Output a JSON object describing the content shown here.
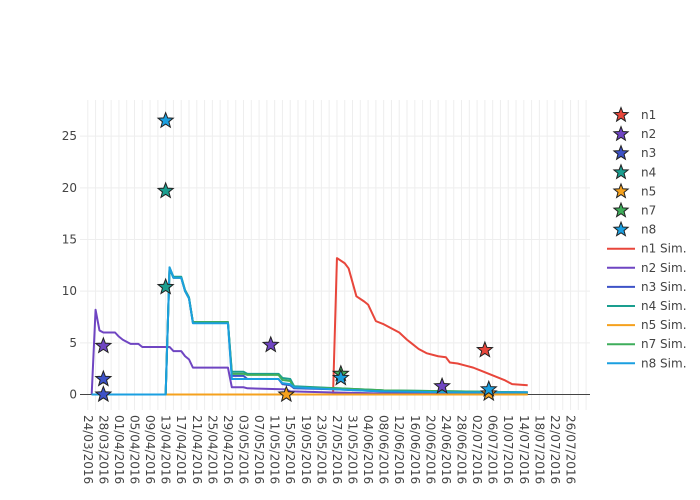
{
  "chart_data": {
    "type": "line",
    "title": "",
    "xlabel": "",
    "ylabel": "",
    "x_axis_type": "date",
    "xlim": [
      "2016-03-22",
      "2016-07-31"
    ],
    "ylim": [
      -1.5,
      28.5
    ],
    "yticks": [
      0,
      5,
      10,
      15,
      20,
      25
    ],
    "xticks": [
      "24/03/2016",
      "28/03/2016",
      "01/04/2016",
      "05/04/2016",
      "09/04/2016",
      "13/04/2016",
      "17/04/2016",
      "21/04/2016",
      "25/04/2016",
      "29/04/2016",
      "03/05/2016",
      "07/05/2016",
      "11/05/2016",
      "15/05/2016",
      "19/05/2016",
      "23/05/2016",
      "27/05/2016",
      "31/05/2016",
      "04/06/2016",
      "08/06/2016",
      "12/06/2016",
      "16/06/2016",
      "20/06/2016",
      "24/06/2016",
      "28/06/2016",
      "02/07/2016",
      "06/07/2016",
      "10/07/2016",
      "14/07/2016",
      "18/07/2016",
      "22/07/2016",
      "26/07/2016"
    ],
    "grid": true,
    "legend_position": "right",
    "observed_series": [
      {
        "name": "n1",
        "color": "#e8463b",
        "marker": "star",
        "points": [
          {
            "x": "2016-07-04",
            "y": 4.3
          }
        ]
      },
      {
        "name": "n2",
        "color": "#6f45c2",
        "marker": "star",
        "points": [
          {
            "x": "2016-03-28",
            "y": 4.7
          },
          {
            "x": "2016-05-10",
            "y": 4.8
          },
          {
            "x": "2016-06-23",
            "y": 0.8
          }
        ]
      },
      {
        "name": "n3",
        "color": "#3d52c7",
        "marker": "star",
        "points": [
          {
            "x": "2016-03-28",
            "y": 1.5
          },
          {
            "x": "2016-03-28",
            "y": 0.0
          }
        ]
      },
      {
        "name": "n4",
        "color": "#1a9e8f",
        "marker": "star",
        "points": [
          {
            "x": "2016-04-13",
            "y": 19.7
          },
          {
            "x": "2016-04-13",
            "y": 10.4
          }
        ]
      },
      {
        "name": "n5",
        "color": "#f5a11d",
        "marker": "star",
        "points": [
          {
            "x": "2016-05-14",
            "y": 0.0
          },
          {
            "x": "2016-07-05",
            "y": 0.1
          }
        ]
      },
      {
        "name": "n7",
        "color": "#3fad5b",
        "marker": "star",
        "points": [
          {
            "x": "2016-05-28",
            "y": 2.0
          }
        ]
      },
      {
        "name": "n8",
        "color": "#1a9fe0",
        "marker": "star",
        "points": [
          {
            "x": "2016-04-13",
            "y": 26.5
          },
          {
            "x": "2016-05-28",
            "y": 1.6
          },
          {
            "x": "2016-07-05",
            "y": 0.5
          }
        ]
      }
    ],
    "simulated_series": [
      {
        "name": "n1 Sim.",
        "color": "#e8463b",
        "points": [
          {
            "x": "2016-05-26",
            "y": 0.0
          },
          {
            "x": "2016-05-27",
            "y": 13.2
          },
          {
            "x": "2016-05-29",
            "y": 12.7
          },
          {
            "x": "2016-05-30",
            "y": 12.2
          },
          {
            "x": "2016-06-01",
            "y": 9.5
          },
          {
            "x": "2016-06-03",
            "y": 9.0
          },
          {
            "x": "2016-06-04",
            "y": 8.7
          },
          {
            "x": "2016-06-06",
            "y": 7.1
          },
          {
            "x": "2016-06-08",
            "y": 6.8
          },
          {
            "x": "2016-06-10",
            "y": 6.4
          },
          {
            "x": "2016-06-12",
            "y": 6.0
          },
          {
            "x": "2016-06-14",
            "y": 5.3
          },
          {
            "x": "2016-06-15",
            "y": 5.0
          },
          {
            "x": "2016-06-17",
            "y": 4.4
          },
          {
            "x": "2016-06-19",
            "y": 4.0
          },
          {
            "x": "2016-06-22",
            "y": 3.7
          },
          {
            "x": "2016-06-24",
            "y": 3.6
          },
          {
            "x": "2016-06-25",
            "y": 3.1
          },
          {
            "x": "2016-06-27",
            "y": 3.0
          },
          {
            "x": "2016-06-29",
            "y": 2.8
          },
          {
            "x": "2016-07-01",
            "y": 2.6
          },
          {
            "x": "2016-07-03",
            "y": 2.3
          },
          {
            "x": "2016-07-05",
            "y": 2.0
          },
          {
            "x": "2016-07-07",
            "y": 1.7
          },
          {
            "x": "2016-07-09",
            "y": 1.4
          },
          {
            "x": "2016-07-11",
            "y": 1.0
          },
          {
            "x": "2016-07-15",
            "y": 0.9
          }
        ]
      },
      {
        "name": "n2 Sim.",
        "color": "#6f45c2",
        "points": [
          {
            "x": "2016-03-25",
            "y": 0.0
          },
          {
            "x": "2016-03-26",
            "y": 8.2
          },
          {
            "x": "2016-03-27",
            "y": 6.2
          },
          {
            "x": "2016-03-28",
            "y": 6.0
          },
          {
            "x": "2016-03-31",
            "y": 6.0
          },
          {
            "x": "2016-04-01",
            "y": 5.6
          },
          {
            "x": "2016-04-02",
            "y": 5.3
          },
          {
            "x": "2016-04-04",
            "y": 4.9
          },
          {
            "x": "2016-04-06",
            "y": 4.9
          },
          {
            "x": "2016-04-07",
            "y": 4.6
          },
          {
            "x": "2016-04-14",
            "y": 4.6
          },
          {
            "x": "2016-04-15",
            "y": 4.2
          },
          {
            "x": "2016-04-17",
            "y": 4.2
          },
          {
            "x": "2016-04-18",
            "y": 3.7
          },
          {
            "x": "2016-04-19",
            "y": 3.4
          },
          {
            "x": "2016-04-20",
            "y": 2.6
          },
          {
            "x": "2016-04-29",
            "y": 2.6
          },
          {
            "x": "2016-04-30",
            "y": 0.7
          },
          {
            "x": "2016-05-03",
            "y": 0.7
          },
          {
            "x": "2016-05-04",
            "y": 0.6
          },
          {
            "x": "2016-05-14",
            "y": 0.5
          },
          {
            "x": "2016-05-15",
            "y": 0.3
          },
          {
            "x": "2016-05-25",
            "y": 0.2
          },
          {
            "x": "2016-06-08",
            "y": 0.1
          },
          {
            "x": "2016-07-15",
            "y": 0.1
          }
        ]
      },
      {
        "name": "n3 Sim.",
        "color": "#3d52c7",
        "points": [
          {
            "x": "2016-03-25",
            "y": 0.0
          },
          {
            "x": "2016-04-13",
            "y": 0.0
          },
          {
            "x": "2016-04-14",
            "y": 12.2
          },
          {
            "x": "2016-04-15",
            "y": 11.3
          },
          {
            "x": "2016-04-17",
            "y": 11.3
          },
          {
            "x": "2016-04-18",
            "y": 10.0
          },
          {
            "x": "2016-04-19",
            "y": 9.3
          },
          {
            "x": "2016-04-20",
            "y": 7.0
          },
          {
            "x": "2016-04-29",
            "y": 7.0
          },
          {
            "x": "2016-04-30",
            "y": 1.8
          },
          {
            "x": "2016-05-03",
            "y": 1.8
          },
          {
            "x": "2016-05-04",
            "y": 1.5
          },
          {
            "x": "2016-05-12",
            "y": 1.5
          },
          {
            "x": "2016-05-13",
            "y": 1.0
          },
          {
            "x": "2016-05-15",
            "y": 0.9
          },
          {
            "x": "2016-05-16",
            "y": 0.6
          },
          {
            "x": "2016-05-27",
            "y": 0.5
          },
          {
            "x": "2016-06-08",
            "y": 0.3
          },
          {
            "x": "2016-06-27",
            "y": 0.2
          },
          {
            "x": "2016-07-15",
            "y": 0.2
          }
        ]
      },
      {
        "name": "n4 Sim.",
        "color": "#1a9e8f",
        "points": [
          {
            "x": "2016-03-25",
            "y": 0.0
          },
          {
            "x": "2016-04-13",
            "y": 0.0
          },
          {
            "x": "2016-04-14",
            "y": 12.3
          },
          {
            "x": "2016-04-15",
            "y": 11.4
          },
          {
            "x": "2016-04-17",
            "y": 11.4
          },
          {
            "x": "2016-04-18",
            "y": 10.1
          },
          {
            "x": "2016-04-19",
            "y": 9.4
          },
          {
            "x": "2016-04-20",
            "y": 7.0
          },
          {
            "x": "2016-04-29",
            "y": 7.0
          },
          {
            "x": "2016-04-30",
            "y": 2.2
          },
          {
            "x": "2016-05-03",
            "y": 2.2
          },
          {
            "x": "2016-05-04",
            "y": 2.0
          },
          {
            "x": "2016-05-12",
            "y": 2.0
          },
          {
            "x": "2016-05-13",
            "y": 1.6
          },
          {
            "x": "2016-05-15",
            "y": 1.5
          },
          {
            "x": "2016-05-16",
            "y": 0.8
          },
          {
            "x": "2016-05-27",
            "y": 0.6
          },
          {
            "x": "2016-06-08",
            "y": 0.4
          },
          {
            "x": "2016-06-27",
            "y": 0.3
          },
          {
            "x": "2016-07-15",
            "y": 0.2
          }
        ]
      },
      {
        "name": "n5 Sim.",
        "color": "#f5a11d",
        "points": [
          {
            "x": "2016-03-25",
            "y": 0.0
          },
          {
            "x": "2016-07-15",
            "y": 0.0
          }
        ]
      },
      {
        "name": "n7 Sim.",
        "color": "#3fad5b",
        "points": [
          {
            "x": "2016-03-25",
            "y": 0.0
          },
          {
            "x": "2016-04-13",
            "y": 0.0
          },
          {
            "x": "2016-04-14",
            "y": 12.2
          },
          {
            "x": "2016-04-15",
            "y": 11.3
          },
          {
            "x": "2016-04-17",
            "y": 11.3
          },
          {
            "x": "2016-04-18",
            "y": 10.0
          },
          {
            "x": "2016-04-19",
            "y": 9.3
          },
          {
            "x": "2016-04-20",
            "y": 7.0
          },
          {
            "x": "2016-04-29",
            "y": 7.0
          },
          {
            "x": "2016-04-30",
            "y": 2.0
          },
          {
            "x": "2016-05-03",
            "y": 2.0
          },
          {
            "x": "2016-05-04",
            "y": 1.9
          },
          {
            "x": "2016-05-12",
            "y": 1.9
          },
          {
            "x": "2016-05-13",
            "y": 1.4
          },
          {
            "x": "2016-05-15",
            "y": 1.3
          },
          {
            "x": "2016-05-16",
            "y": 0.7
          },
          {
            "x": "2016-05-27",
            "y": 0.6
          },
          {
            "x": "2016-06-08",
            "y": 0.4
          },
          {
            "x": "2016-06-27",
            "y": 0.3
          },
          {
            "x": "2016-07-15",
            "y": 0.2
          }
        ]
      },
      {
        "name": "n8 Sim.",
        "color": "#1a9fe0",
        "points": [
          {
            "x": "2016-03-25",
            "y": 0.0
          },
          {
            "x": "2016-04-13",
            "y": 0.0
          },
          {
            "x": "2016-04-14",
            "y": 12.3
          },
          {
            "x": "2016-04-15",
            "y": 11.3
          },
          {
            "x": "2016-04-17",
            "y": 11.3
          },
          {
            "x": "2016-04-18",
            "y": 10.0
          },
          {
            "x": "2016-04-19",
            "y": 9.3
          },
          {
            "x": "2016-04-20",
            "y": 6.9
          },
          {
            "x": "2016-04-29",
            "y": 6.9
          },
          {
            "x": "2016-04-30",
            "y": 1.5
          },
          {
            "x": "2016-05-03",
            "y": 1.5
          },
          {
            "x": "2016-05-04",
            "y": 1.5
          },
          {
            "x": "2016-05-12",
            "y": 1.5
          },
          {
            "x": "2016-05-13",
            "y": 1.1
          },
          {
            "x": "2016-05-15",
            "y": 1.0
          },
          {
            "x": "2016-05-16",
            "y": 0.7
          },
          {
            "x": "2016-05-27",
            "y": 0.5
          },
          {
            "x": "2016-06-08",
            "y": 0.3
          },
          {
            "x": "2016-06-27",
            "y": 0.2
          },
          {
            "x": "2016-07-15",
            "y": 0.2
          }
        ]
      }
    ]
  }
}
